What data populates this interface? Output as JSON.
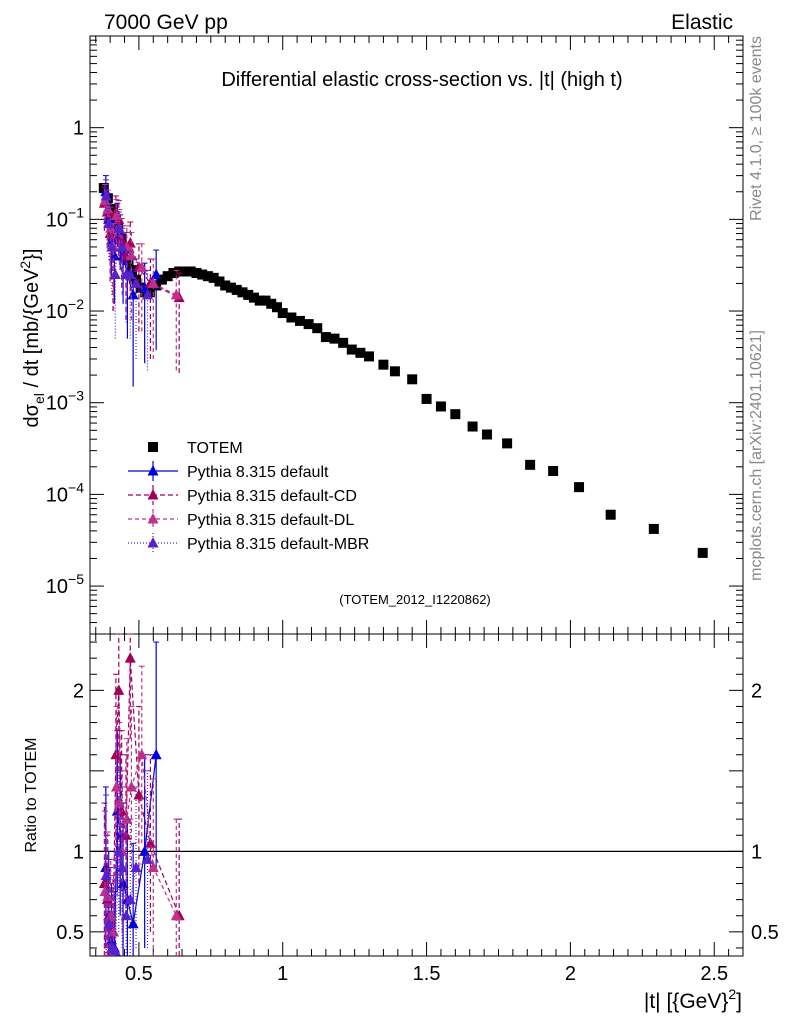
{
  "header": {
    "left": "7000 GeV pp",
    "right": "Elastic"
  },
  "side_labels": {
    "rivet": "Rivet 4.1.0, ≥ 100k events",
    "mcplots": "mcplots.cern.ch [arXiv:2401.10621]"
  },
  "chart_data": [
    {
      "type": "scatter",
      "panel": "main",
      "title": "Differential elastic cross-section vs. |t| (high t)",
      "watermark": "(TOTEM_2012_I1220862)",
      "ylabel": "dσ_el / dt [mb/{GeV}^2]",
      "ylabel_main": "dσ",
      "ylabel_sub": "el",
      "ylabel_rest": " / dt [mb/{GeV",
      "ylabel_sup": "2",
      "ylabel_end": "}]",
      "yscale": "log",
      "xlim": [
        0.33,
        2.6
      ],
      "ylim": [
        3e-06,
        10
      ],
      "yticks": [
        {
          "value": 1,
          "label": "1"
        },
        {
          "value": 0.1,
          "label": "10^-1",
          "base": "10",
          "exp": "−1"
        },
        {
          "value": 0.01,
          "label": "10^-2",
          "base": "10",
          "exp": "−2"
        },
        {
          "value": 0.001,
          "label": "10^-3",
          "base": "10",
          "exp": "−3"
        },
        {
          "value": 0.0001,
          "label": "10^-4",
          "base": "10",
          "exp": "−4"
        },
        {
          "value": 1e-05,
          "label": "10^-5",
          "base": "10",
          "exp": "−5"
        }
      ],
      "legend_position": "center-left",
      "series": [
        {
          "name": "TOTEM",
          "color": "#000000",
          "marker": "square",
          "x": [
            0.378,
            0.392,
            0.404,
            0.416,
            0.428,
            0.44,
            0.452,
            0.464,
            0.476,
            0.49,
            0.506,
            0.522,
            0.538,
            0.56,
            0.58,
            0.6,
            0.62,
            0.64,
            0.66,
            0.68,
            0.7,
            0.72,
            0.74,
            0.76,
            0.78,
            0.8,
            0.82,
            0.84,
            0.86,
            0.88,
            0.9,
            0.92,
            0.94,
            0.96,
            0.98,
            1.0,
            1.03,
            1.06,
            1.09,
            1.12,
            1.15,
            1.18,
            1.21,
            1.24,
            1.27,
            1.3,
            1.35,
            1.39,
            1.45,
            1.5,
            1.55,
            1.6,
            1.66,
            1.71,
            1.78,
            1.86,
            1.94,
            2.03,
            2.14,
            2.29,
            2.46
          ],
          "y": [
            0.22,
            0.17,
            0.13,
            0.1,
            0.08,
            0.062,
            0.048,
            0.036,
            0.028,
            0.022,
            0.018,
            0.016,
            0.016,
            0.019,
            0.022,
            0.024,
            0.026,
            0.027,
            0.027,
            0.027,
            0.026,
            0.025,
            0.024,
            0.023,
            0.021,
            0.019,
            0.018,
            0.017,
            0.016,
            0.015,
            0.014,
            0.013,
            0.013,
            0.012,
            0.011,
            0.0095,
            0.0085,
            0.0078,
            0.0072,
            0.0065,
            0.0052,
            0.005,
            0.0045,
            0.0038,
            0.0035,
            0.0032,
            0.0026,
            0.0022,
            0.0018,
            0.0011,
            0.00091,
            0.00075,
            0.00055,
            0.00045,
            0.00036,
            0.00021,
            0.00018,
            0.00012,
            6e-05,
            4.2e-05,
            2.3e-05
          ]
        },
        {
          "name": "Pythia 8.315 default",
          "color": "#0000dd",
          "marker": "triangle",
          "dash": "",
          "x": [
            0.385,
            0.395,
            0.405,
            0.415,
            0.425,
            0.435,
            0.445,
            0.46,
            0.48,
            0.52,
            0.56
          ],
          "y": [
            0.2,
            0.1,
            0.06,
            0.04,
            0.1,
            0.07,
            0.04,
            0.025,
            0.015,
            0.018,
            0.025
          ],
          "err": [
            0.5,
            0.5,
            0.6,
            0.7,
            0.5,
            0.6,
            0.7,
            0.8,
            0.9,
            0.85,
            0.85
          ]
        },
        {
          "name": "Pythia 8.315 default-CD",
          "color": "#a0005a",
          "marker": "triangle",
          "dash": "5,3",
          "x": [
            0.38,
            0.39,
            0.4,
            0.41,
            0.42,
            0.43,
            0.44,
            0.455,
            0.47,
            0.5,
            0.54,
            0.64
          ],
          "y": [
            0.15,
            0.12,
            0.07,
            0.05,
            0.12,
            0.1,
            0.06,
            0.04,
            0.055,
            0.03,
            0.02,
            0.014
          ],
          "err": [
            0.5,
            0.6,
            0.7,
            0.8,
            0.5,
            0.6,
            0.7,
            0.8,
            0.7,
            0.8,
            0.85,
            0.85
          ]
        },
        {
          "name": "Pythia 8.315 default-DL",
          "color": "#c0308a",
          "marker": "triangle",
          "dash": "4,3",
          "x": [
            0.382,
            0.392,
            0.402,
            0.412,
            0.422,
            0.432,
            0.442,
            0.458,
            0.474,
            0.51,
            0.55,
            0.63
          ],
          "y": [
            0.16,
            0.13,
            0.08,
            0.05,
            0.11,
            0.08,
            0.05,
            0.05,
            0.04,
            0.03,
            0.02,
            0.015
          ],
          "err": [
            0.5,
            0.6,
            0.7,
            0.8,
            0.5,
            0.6,
            0.7,
            0.7,
            0.8,
            0.8,
            0.85,
            0.85
          ]
        },
        {
          "name": "Pythia 8.315 default-MBR",
          "color": "#5522cc",
          "marker": "triangle",
          "dash": "1,2",
          "x": [
            0.386,
            0.396,
            0.406,
            0.418,
            0.43,
            0.442,
            0.456,
            0.47,
            0.49,
            0.53
          ],
          "y": [
            0.18,
            0.09,
            0.05,
            0.025,
            0.08,
            0.05,
            0.025,
            0.025,
            0.02,
            0.015
          ],
          "err": [
            0.5,
            0.6,
            0.7,
            0.8,
            0.5,
            0.6,
            0.7,
            0.8,
            0.85,
            0.85
          ]
        }
      ]
    },
    {
      "type": "line",
      "panel": "ratio",
      "ylabel": "Ratio to TOTEM",
      "xlabel": "|t| [{GeV}^2]",
      "xlabel_main": "|t| [{GeV}",
      "xlabel_sup": "2",
      "xlabel_end": "]",
      "xlim": [
        0.33,
        2.6
      ],
      "ylim": [
        0.35,
        2.35
      ],
      "xticks": [
        {
          "value": 0.5,
          "label": "0.5"
        },
        {
          "value": 1,
          "label": "1"
        },
        {
          "value": 1.5,
          "label": "1.5"
        },
        {
          "value": 2,
          "label": "2"
        },
        {
          "value": 2.5,
          "label": "2.5"
        }
      ],
      "yticks": [
        {
          "value": 0.5,
          "label": "0.5"
        },
        {
          "value": 1,
          "label": "1"
        },
        {
          "value": 2,
          "label": "2"
        }
      ],
      "reference": 1,
      "series": [
        {
          "name": "Pythia 8.315 default",
          "color": "#0000dd",
          "dash": "",
          "x": [
            0.385,
            0.395,
            0.405,
            0.415,
            0.425,
            0.435,
            0.445,
            0.46,
            0.48,
            0.52,
            0.56
          ],
          "y": [
            0.9,
            0.6,
            0.45,
            0.4,
            1.25,
            1.1,
            0.8,
            0.7,
            0.55,
            1.0,
            1.6
          ],
          "err": [
            0.5,
            0.4,
            0.35,
            0.35,
            0.5,
            0.5,
            0.5,
            0.5,
            0.5,
            0.6,
            0.7
          ]
        },
        {
          "name": "Pythia 8.315 default-CD",
          "color": "#a0005a",
          "dash": "5,3",
          "x": [
            0.38,
            0.39,
            0.4,
            0.41,
            0.42,
            0.43,
            0.44,
            0.455,
            0.47,
            0.5,
            0.54,
            0.64
          ],
          "y": [
            0.8,
            0.7,
            0.55,
            0.5,
            1.6,
            2.0,
            1.25,
            1.1,
            2.2,
            1.35,
            1.05,
            0.6
          ],
          "err": [
            0.5,
            0.4,
            0.35,
            0.35,
            0.5,
            0.5,
            0.5,
            0.5,
            0.5,
            0.55,
            0.55,
            0.6
          ]
        },
        {
          "name": "Pythia 8.315 default-DL",
          "color": "#c0308a",
          "dash": "4,3",
          "x": [
            0.382,
            0.392,
            0.402,
            0.412,
            0.422,
            0.432,
            0.442,
            0.458,
            0.474,
            0.51,
            0.55,
            0.63
          ],
          "y": [
            0.75,
            0.72,
            0.6,
            0.5,
            1.4,
            1.3,
            1.0,
            1.2,
            1.4,
            1.6,
            0.9,
            0.6
          ],
          "err": [
            0.5,
            0.4,
            0.35,
            0.35,
            0.5,
            0.5,
            0.5,
            0.5,
            0.5,
            0.55,
            0.55,
            0.6
          ]
        },
        {
          "name": "Pythia 8.315 default-MBR",
          "color": "#5522cc",
          "dash": "1,2",
          "x": [
            0.386,
            0.396,
            0.406,
            0.418,
            0.43,
            0.442,
            0.456,
            0.47,
            0.49,
            0.53
          ],
          "y": [
            0.85,
            0.55,
            0.4,
            0.38,
            1.0,
            0.9,
            0.6,
            0.7,
            0.9,
            0.95
          ],
          "err": [
            0.5,
            0.4,
            0.35,
            0.35,
            0.5,
            0.5,
            0.5,
            0.5,
            0.5,
            0.55
          ]
        }
      ]
    }
  ]
}
